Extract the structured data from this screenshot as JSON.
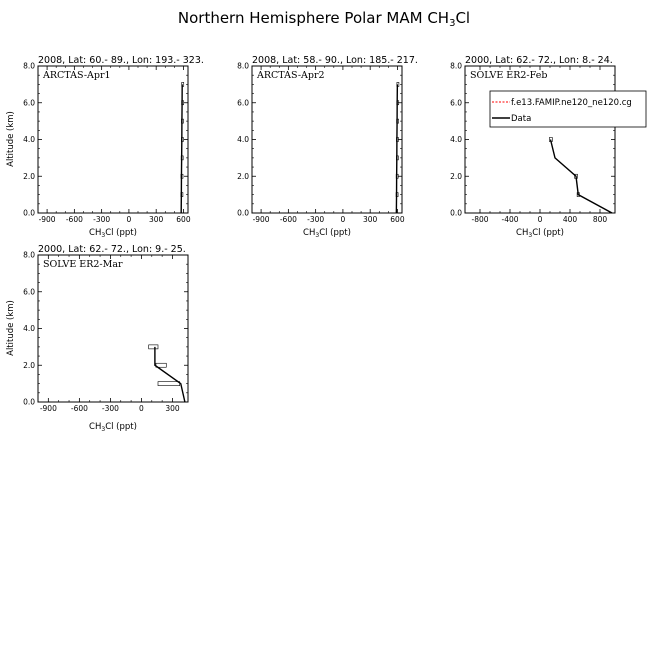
{
  "page": {
    "title_main": "Northern Hemisphere Polar MAM CH",
    "title_sub": "3",
    "title_tail": "Cl"
  },
  "common": {
    "xlabel_main": "CH",
    "xlabel_sub": "3",
    "xlabel_tail": "Cl (ppt)",
    "ylabel": "Altitude (km)",
    "y_ticks": [
      "0.0",
      "2.0",
      "4.0",
      "6.0",
      "8.0"
    ]
  },
  "chart_data": [
    {
      "type": "line",
      "header": "2008, Lat:  60.- 89., Lon: 193.- 323.",
      "case_label": "ARCTAS-Apr1",
      "xlim": [
        -1000,
        650
      ],
      "ylim": [
        0,
        8
      ],
      "x_ticks": [
        -900,
        -600,
        -300,
        0,
        300,
        600
      ],
      "x_tick_labels": [
        "-900",
        "-600",
        "-300",
        "0",
        "300",
        "600"
      ],
      "series": [
        {
          "kind": "model",
          "color": "#ff0000",
          "points": []
        },
        {
          "kind": "data",
          "color": "#000000",
          "points": [
            [
              575,
              0
            ],
            [
              577,
              1
            ],
            [
              578,
              2
            ],
            [
              580,
              3
            ],
            [
              582,
              4
            ],
            [
              583,
              5
            ],
            [
              585,
              6
            ],
            [
              586,
              7
            ]
          ]
        }
      ],
      "ranges": [
        {
          "y": 1,
          "lo": 572,
          "hi": 582
        },
        {
          "y": 2,
          "lo": 573,
          "hi": 583
        },
        {
          "y": 3,
          "lo": 575,
          "hi": 585
        },
        {
          "y": 4,
          "lo": 577,
          "hi": 587
        },
        {
          "y": 5,
          "lo": 578,
          "hi": 588
        },
        {
          "y": 6,
          "lo": 580,
          "hi": 590
        },
        {
          "y": 7,
          "lo": 581,
          "hi": 591
        }
      ]
    },
    {
      "type": "line",
      "header": "2008, Lat:  58.- 90., Lon: 185.- 217.",
      "case_label": "ARCTAS-Apr2",
      "xlim": [
        -1000,
        650
      ],
      "ylim": [
        0,
        8
      ],
      "x_ticks": [
        -900,
        -600,
        -300,
        0,
        300,
        600
      ],
      "x_tick_labels": [
        "-900",
        "-600",
        "-300",
        "0",
        "300",
        "600"
      ],
      "series": [
        {
          "kind": "model",
          "color": "#ff0000",
          "points": []
        },
        {
          "kind": "data",
          "color": "#000000",
          "points": [
            [
              588,
              0
            ],
            [
              590,
              1
            ],
            [
              591,
              2
            ],
            [
              593,
              3
            ],
            [
              594,
              4
            ],
            [
              596,
              5
            ],
            [
              597,
              6
            ],
            [
              599,
              7
            ]
          ]
        }
      ],
      "ranges": [
        {
          "y": 1,
          "lo": 585,
          "hi": 595
        },
        {
          "y": 2,
          "lo": 586,
          "hi": 596
        },
        {
          "y": 3,
          "lo": 588,
          "hi": 598
        },
        {
          "y": 4,
          "lo": 589,
          "hi": 599
        },
        {
          "y": 5,
          "lo": 591,
          "hi": 601
        },
        {
          "y": 6,
          "lo": 592,
          "hi": 602
        },
        {
          "y": 7,
          "lo": 594,
          "hi": 604
        }
      ]
    },
    {
      "type": "line",
      "header": "2000, Lat: 62.- 72., Lon: 8.- 24.",
      "case_label": "SOLVE ER2-Feb",
      "xlim": [
        -1000,
        1000
      ],
      "ylim": [
        0,
        8
      ],
      "x_ticks": [
        -800,
        -400,
        0,
        400,
        800
      ],
      "x_tick_labels": [
        "-800",
        "-400",
        "0",
        "400",
        "800"
      ],
      "legend": {
        "position": "top-right",
        "items": [
          {
            "label": "f.e13.FAMIP.ne120_ne120.cg",
            "color": "#ff0000",
            "style": "dashed"
          },
          {
            "label": "Data",
            "color": "#000000",
            "style": "solid"
          }
        ]
      },
      "series": [
        {
          "kind": "model",
          "color": "#ff0000",
          "points": []
        },
        {
          "kind": "data",
          "color": "#000000",
          "points": [
            [
              140,
              4
            ],
            [
              200,
              3
            ],
            [
              480,
              2
            ],
            [
              510,
              1
            ],
            [
              960,
              0
            ]
          ]
        }
      ],
      "ranges": [
        {
          "y": 4,
          "lo": 125,
          "hi": 165
        },
        {
          "y": 2,
          "lo": 460,
          "hi": 500
        },
        {
          "y": 1,
          "lo": 495,
          "hi": 525
        }
      ]
    },
    {
      "type": "line",
      "header": "2000, Lat: 62.- 72., Lon: 9.- 25.",
      "case_label": "SOLVE ER2-Mar",
      "xlim": [
        -1000,
        450
      ],
      "ylim": [
        0,
        8
      ],
      "x_ticks": [
        -900,
        -600,
        -300,
        0,
        300
      ],
      "x_tick_labels": [
        "-900",
        "-600",
        "-300",
        "0",
        "300"
      ],
      "series": [
        {
          "kind": "model",
          "color": "#ff0000",
          "points": []
        },
        {
          "kind": "data",
          "color": "#000000",
          "points": [
            [
              130,
              3
            ],
            [
              130,
              2
            ],
            [
              380,
              1
            ],
            [
              420,
              0
            ]
          ]
        }
      ],
      "ranges": [
        {
          "y": 3,
          "lo": 70,
          "hi": 160
        },
        {
          "y": 2,
          "lo": 140,
          "hi": 240
        },
        {
          "y": 1,
          "lo": 160,
          "hi": 370
        }
      ]
    }
  ]
}
